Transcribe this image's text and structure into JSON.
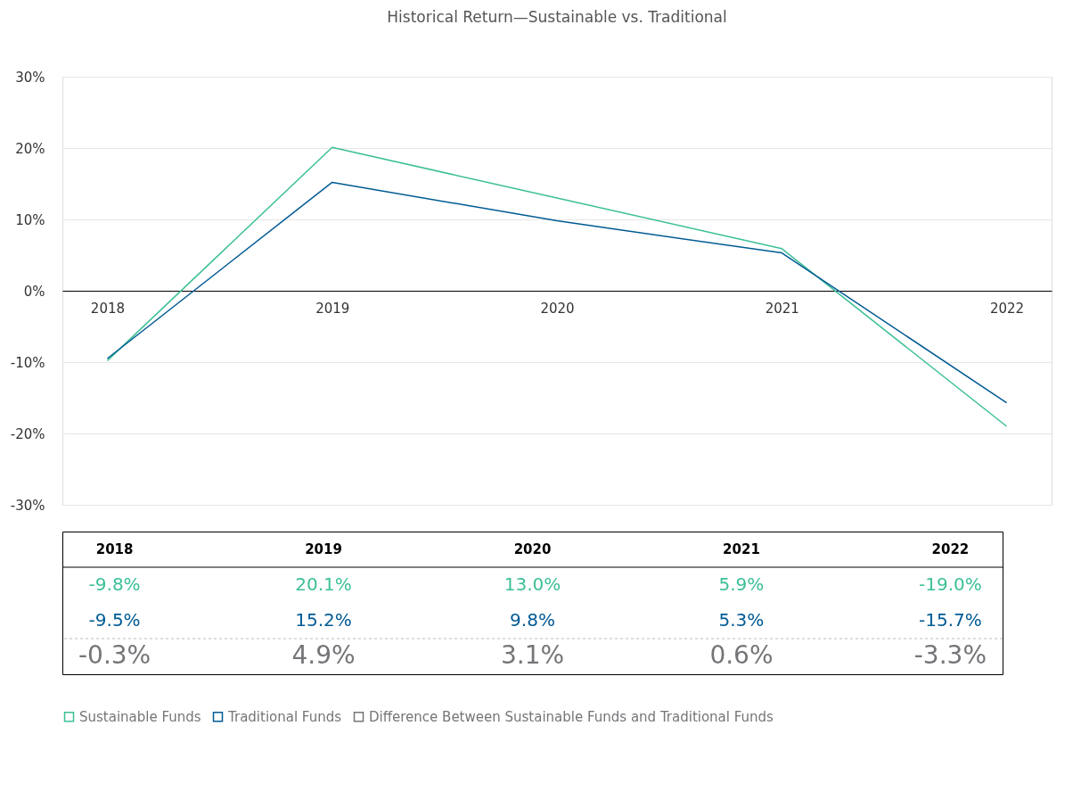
{
  "chart_data": {
    "type": "line",
    "title": "Historical Return—Sustainable vs. Traditional",
    "categories": [
      "2018",
      "2019",
      "2020",
      "2021",
      "2022"
    ],
    "series": [
      {
        "name": "Sustainable Funds",
        "color": "#3dbf98",
        "values": [
          -9.8,
          20.1,
          13.0,
          5.9,
          -19.0
        ],
        "value_labels": [
          "-9.8%",
          "20.1%",
          "13.0%",
          "5.9%",
          "-19.0%"
        ]
      },
      {
        "name": "Traditional Funds",
        "color": "#005a94",
        "values": [
          -9.5,
          15.2,
          9.8,
          5.3,
          -15.7
        ],
        "value_labels": [
          "-9.5%",
          "15.2%",
          "9.8%",
          "5.3%",
          "-15.7%"
        ]
      },
      {
        "name": "Difference Between Sustainable Funds and Traditional Funds",
        "type": "other",
        "color": "#757579",
        "values": [
          null,
          null,
          null,
          null,
          null
        ],
        "value_labels": [
          "-0.3%",
          "4.9%",
          "3.1%",
          "0.6%",
          "-3.3%"
        ]
      }
    ],
    "ylim": [
      -30,
      30
    ],
    "yticks": [
      {
        "value": -30,
        "label": "-30%"
      },
      {
        "value": -20,
        "label": "-20%"
      },
      {
        "value": -10,
        "label": "-10%"
      },
      {
        "value": 0,
        "label": "0%"
      },
      {
        "value": 10,
        "label": "10%"
      },
      {
        "value": 20,
        "label": "20%"
      },
      {
        "value": 30,
        "label": "30%"
      }
    ],
    "grid": "y",
    "legend": "bottom",
    "marker": "none",
    "line_style": "solid"
  }
}
